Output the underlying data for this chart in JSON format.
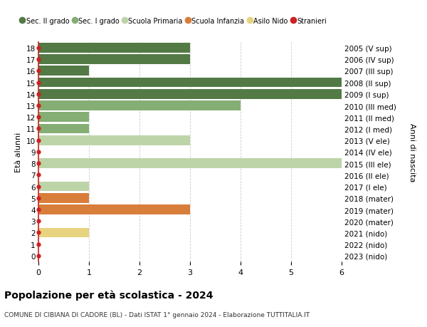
{
  "title": "Popolazione per età scolastica - 2024",
  "subtitle": "COMUNE DI CIBIANA DI CADORE (BL) - Dati ISTAT 1° gennaio 2024 - Elaborazione TUTTITALIA.IT",
  "ylabel_left": "Età alunni",
  "ylabel_right": "Anni di nascita",
  "xlim": [
    0,
    6
  ],
  "xticks": [
    0,
    1,
    2,
    3,
    4,
    5,
    6
  ],
  "ages": [
    18,
    17,
    16,
    15,
    14,
    13,
    12,
    11,
    10,
    9,
    8,
    7,
    6,
    5,
    4,
    3,
    2,
    1,
    0
  ],
  "right_labels": [
    "2005 (V sup)",
    "2006 (IV sup)",
    "2007 (III sup)",
    "2008 (II sup)",
    "2009 (I sup)",
    "2010 (III med)",
    "2011 (II med)",
    "2012 (I med)",
    "2013 (V ele)",
    "2014 (IV ele)",
    "2015 (III ele)",
    "2016 (II ele)",
    "2017 (I ele)",
    "2018 (mater)",
    "2019 (mater)",
    "2020 (mater)",
    "2021 (nido)",
    "2022 (nido)",
    "2023 (nido)"
  ],
  "bars": [
    {
      "age": 18,
      "value": 3,
      "color": "#537a45"
    },
    {
      "age": 17,
      "value": 3,
      "color": "#537a45"
    },
    {
      "age": 16,
      "value": 1,
      "color": "#537a45"
    },
    {
      "age": 15,
      "value": 6,
      "color": "#537a45"
    },
    {
      "age": 14,
      "value": 6,
      "color": "#537a45"
    },
    {
      "age": 13,
      "value": 4,
      "color": "#84ae74"
    },
    {
      "age": 12,
      "value": 1,
      "color": "#84ae74"
    },
    {
      "age": 11,
      "value": 1,
      "color": "#84ae74"
    },
    {
      "age": 10,
      "value": 3,
      "color": "#bdd4a8"
    },
    {
      "age": 9,
      "value": 0,
      "color": "#bdd4a8"
    },
    {
      "age": 8,
      "value": 6,
      "color": "#bdd4a8"
    },
    {
      "age": 7,
      "value": 0,
      "color": "#bdd4a8"
    },
    {
      "age": 6,
      "value": 1,
      "color": "#bdd4a8"
    },
    {
      "age": 5,
      "value": 1,
      "color": "#d97d3a"
    },
    {
      "age": 4,
      "value": 3,
      "color": "#d97d3a"
    },
    {
      "age": 3,
      "value": 0,
      "color": "#d97d3a"
    },
    {
      "age": 2,
      "value": 1,
      "color": "#e8d47e"
    },
    {
      "age": 1,
      "value": 0,
      "color": "#e8d47e"
    },
    {
      "age": 0,
      "value": 0,
      "color": "#e8d47e"
    }
  ],
  "stranieri_dots": [
    18,
    17,
    16,
    15,
    14,
    13,
    12,
    11,
    10,
    9,
    8,
    7,
    6,
    5,
    4,
    3,
    2,
    1,
    0
  ],
  "legend": [
    {
      "label": "Sec. II grado",
      "color": "#537a45",
      "type": "circle"
    },
    {
      "label": "Sec. I grado",
      "color": "#84ae74",
      "type": "circle"
    },
    {
      "label": "Scuola Primaria",
      "color": "#bdd4a8",
      "type": "circle"
    },
    {
      "label": "Scuola Infanzia",
      "color": "#d97d3a",
      "type": "circle"
    },
    {
      "label": "Asilo Nido",
      "color": "#e8d47e",
      "type": "circle"
    },
    {
      "label": "Stranieri",
      "color": "#cc2222",
      "type": "circle"
    }
  ],
  "dot_color": "#cc2222",
  "background_color": "#ffffff",
  "grid_color": "#cccccc",
  "bar_height": 0.85
}
